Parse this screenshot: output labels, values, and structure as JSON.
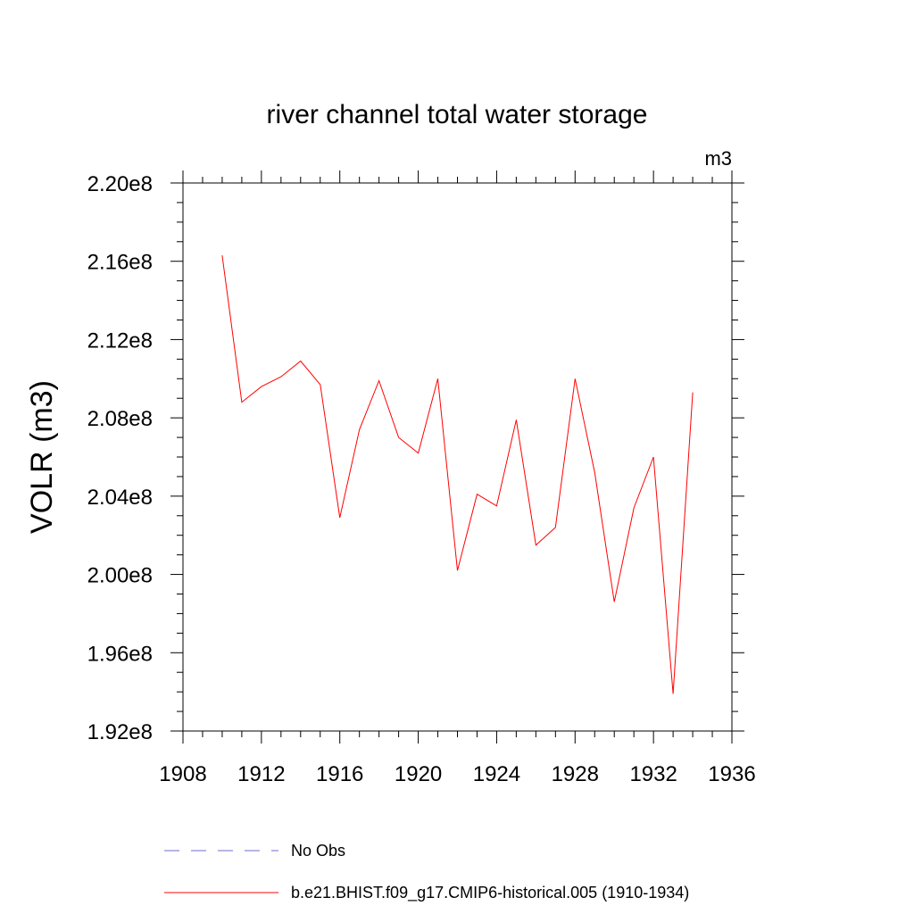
{
  "chart_data": {
    "type": "line",
    "title": "river channel total water storage",
    "units_label": "m3",
    "xlabel": "",
    "ylabel": "VOLR  (m3)",
    "xlim": [
      1908,
      1936
    ],
    "ylim": [
      192000000.0,
      220000000.0
    ],
    "x_ticks": [
      1908,
      1912,
      1916,
      1920,
      1924,
      1928,
      1932,
      1936
    ],
    "x_tick_labels": [
      "1908",
      "1912",
      "1916",
      "1920",
      "1924",
      "1928",
      "1932",
      "1936"
    ],
    "y_ticks": [
      192000000.0,
      196000000.0,
      200000000.0,
      204000000.0,
      208000000.0,
      212000000.0,
      216000000.0,
      220000000.0
    ],
    "y_tick_labels": [
      "1.92e8",
      "1.96e8",
      "2.00e8",
      "2.04e8",
      "2.08e8",
      "2.12e8",
      "2.16e8",
      "2.20e8"
    ],
    "grid": false,
    "legend_position": "bottom",
    "series": [
      {
        "name": "b.e21.BHIST.f09_g17.CMIP6-historical.005 (1910-1934)",
        "color": "#ff0000",
        "style": "solid",
        "x": [
          1910,
          1911,
          1912,
          1913,
          1914,
          1915,
          1916,
          1917,
          1918,
          1919,
          1920,
          1921,
          1922,
          1923,
          1924,
          1925,
          1926,
          1927,
          1928,
          1929,
          1930,
          1931,
          1932,
          1933,
          1934
        ],
        "y": [
          216300000.0,
          208800000.0,
          209600000.0,
          210100000.0,
          210900000.0,
          209700000.0,
          202900000.0,
          207400000.0,
          209900000.0,
          207000000.0,
          206200000.0,
          210000000.0,
          200200000.0,
          204100000.0,
          203500000.0,
          207900000.0,
          201500000.0,
          202400000.0,
          210000000.0,
          205200000.0,
          198600000.0,
          203400000.0,
          206000000.0,
          193900000.0,
          209300000.0
        ]
      }
    ],
    "legend": [
      {
        "label": "No Obs",
        "color": "#6c6cc8",
        "style": "dashed"
      },
      {
        "label": "b.e21.BHIST.f09_g17.CMIP6-historical.005 (1910-1934)",
        "color": "#ff0000",
        "style": "solid"
      }
    ]
  }
}
